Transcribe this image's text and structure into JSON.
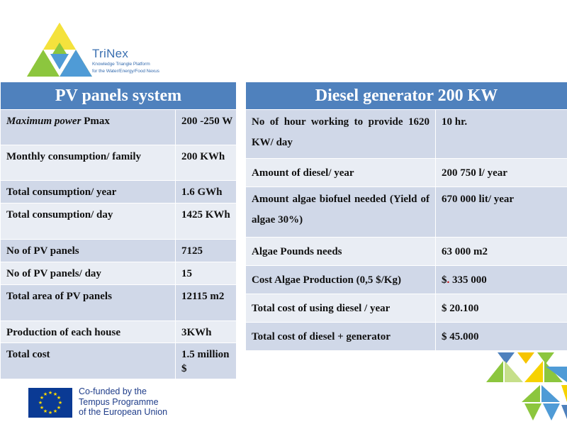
{
  "logo": {
    "name": "TriNex",
    "subtitle_line1": "Knowledge Triangle Platform",
    "subtitle_line2": "for the Water/Energy/Food Nexus"
  },
  "pv_table": {
    "title": "PV panels system",
    "rows": [
      {
        "label_italic": "Maximum  power",
        "label": " Pmax",
        "value": "200  -250 W"
      },
      {
        "label": "Monthly consumption/ family",
        "value": "200 KWh"
      },
      {
        "label": "Total consumption/ year",
        "value": "1.6 GWh"
      },
      {
        "label": "Total consumption/ day",
        "value": "1425 KWh"
      },
      {
        "label": "No of PV panels",
        "value": "7125"
      },
      {
        "label": "No of PV panels/ day",
        "value": "15"
      },
      {
        "label": "Total area of PV panels",
        "value": "12115 m2"
      },
      {
        "label": "Production of each house",
        "value": "3KWh"
      },
      {
        "label": "Total cost",
        "value": "1.5 million  $"
      }
    ]
  },
  "diesel_table": {
    "title": "Diesel generator 200 KW",
    "rows": [
      {
        "label": "No of hour working to provide 1620 KW/ day",
        "value": "10 hr."
      },
      {
        "label": "Amount of diesel/ year",
        "value": "200 750 l/ year"
      },
      {
        "label": "Amount algae biofuel needed (Yield of algae 30%)",
        "value": "670  000 lit/ year"
      },
      {
        "label": "Algae Pounds needs",
        "value": "63 000 m2"
      },
      {
        "label": "Cost Algae Production (0,5 $/Kg)",
        "value_prefix": "$",
        "value_dot": ".",
        "value_rest": " 335 000"
      },
      {
        "label": "Total cost of using diesel / year",
        "value": "$ 20.100"
      },
      {
        "label": "Total cost of  diesel + generator",
        "value": "$ 45.000"
      }
    ]
  },
  "funding": {
    "line1": "Co-funded by the",
    "line2": "Tempus Programme",
    "line3": "of the European Union"
  },
  "colors": {
    "header": "#4f81bd",
    "row_dark": "#d0d8e8",
    "row_light": "#e9edf4",
    "eu_blue": "#0a3a94",
    "eu_star": "#ffdd00"
  }
}
